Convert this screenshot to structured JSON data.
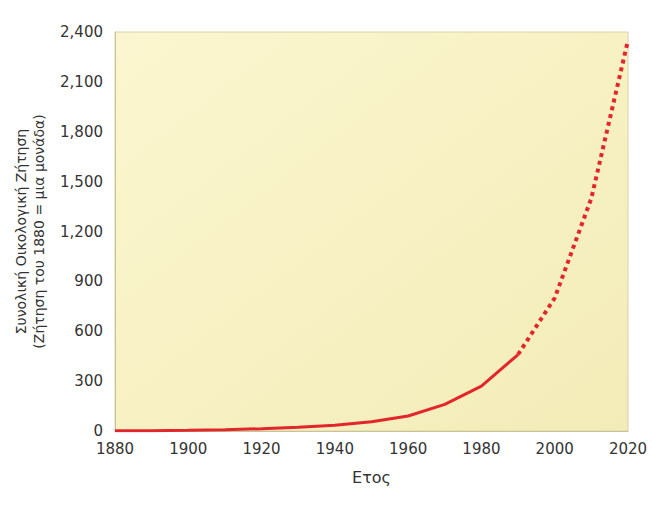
{
  "chart_data": {
    "type": "line",
    "xlabel": "Ετος",
    "ylabel": [
      "Συνολική Οικολογική Ζήτηση",
      "(Ζήτηση του 1880 = μια μονάδα)"
    ],
    "x": [
      1880,
      1890,
      1900,
      1910,
      1920,
      1930,
      1940,
      1950,
      1960,
      1970,
      1980,
      1990,
      2000,
      2010,
      2020
    ],
    "series": [
      {
        "color": "#e3262c",
        "line_style": "solid",
        "values": [
          1,
          2,
          4,
          8,
          14,
          22,
          35,
          55,
          90,
          160,
          270,
          460,
          null,
          null,
          null
        ]
      },
      {
        "color": "#e3262c",
        "line_style": "dotted",
        "values": [
          null,
          null,
          null,
          null,
          null,
          null,
          null,
          null,
          null,
          null,
          null,
          460,
          800,
          1400,
          2350
        ]
      }
    ],
    "xlim": [
      1880,
      2020
    ],
    "xticks": [
      1880,
      1900,
      1920,
      1940,
      1960,
      1980,
      2000,
      2020
    ],
    "ylim": [
      0,
      2400
    ],
    "yticks": [
      0,
      300,
      600,
      900,
      {
        "value": 1200,
        "label": "1,200"
      },
      {
        "value": 1500,
        "label": "1,500"
      },
      {
        "value": 1800,
        "label": "1,800"
      },
      {
        "value": 2100,
        "label": "2,100"
      },
      {
        "value": 2400,
        "label": "2,400"
      }
    ],
    "grid": false
  }
}
